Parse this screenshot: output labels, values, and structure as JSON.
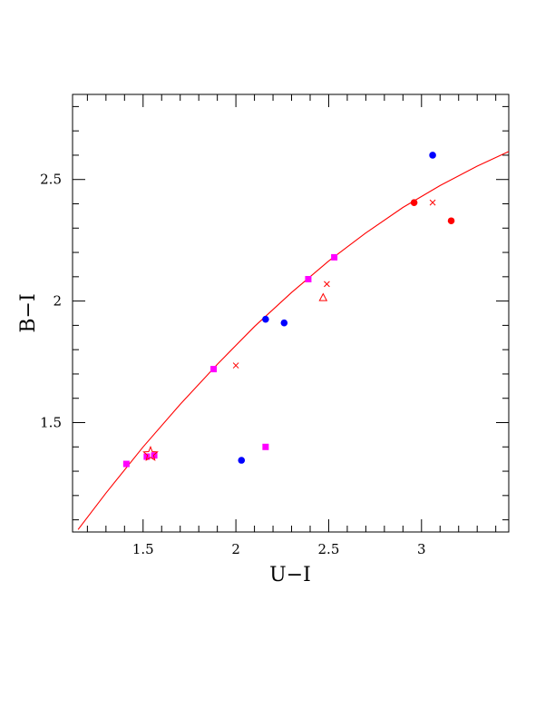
{
  "chart_data": {
    "type": "scatter",
    "title": "",
    "xlabel": "U−I",
    "ylabel": "B−I",
    "xlim": [
      1.12,
      3.47
    ],
    "ylim": [
      1.05,
      2.85
    ],
    "grid": false,
    "x_ticks": [
      {
        "value": 1.5,
        "label": "1.5"
      },
      {
        "value": 2,
        "label": "2"
      },
      {
        "value": 2.5,
        "label": "2.5"
      },
      {
        "value": 3,
        "label": "3"
      }
    ],
    "y_ticks": [
      {
        "value": 1.5,
        "label": "1.5"
      },
      {
        "value": 2,
        "label": "2"
      },
      {
        "value": 2.5,
        "label": "2.5"
      }
    ],
    "x_minor_step": 0.1,
    "y_minor_step": 0.1,
    "series": [
      {
        "color": "#ff00ff",
        "marker": "square",
        "points": [
          [
            1.41,
            1.33
          ],
          [
            1.52,
            1.36
          ],
          [
            1.56,
            1.365
          ],
          [
            1.88,
            1.72
          ],
          [
            2.16,
            1.4
          ],
          [
            2.39,
            2.09
          ],
          [
            2.53,
            2.18
          ]
        ]
      },
      {
        "color": "#0000ff",
        "marker": "circle",
        "points": [
          [
            2.03,
            1.345
          ],
          [
            2.16,
            1.925
          ],
          [
            2.26,
            1.91
          ],
          [
            3.06,
            2.6
          ]
        ]
      },
      {
        "color": "#ff0000",
        "marker": "circle",
        "points": [
          [
            2.96,
            2.405
          ],
          [
            3.16,
            2.33
          ]
        ]
      },
      {
        "color": "#ff0000",
        "marker": "triangle",
        "points": [
          [
            2.47,
            2.015
          ]
        ]
      },
      {
        "color": "#ff0000",
        "marker": "star",
        "points": [
          [
            1.54,
            1.37
          ]
        ]
      },
      {
        "color": "#ff0000",
        "marker": "cross",
        "points": [
          [
            2.0,
            1.735
          ],
          [
            2.49,
            2.07
          ],
          [
            3.06,
            2.405
          ]
        ]
      }
    ],
    "curve": {
      "color": "#ff0000",
      "type": "line",
      "points": [
        [
          1.15,
          1.06
        ],
        [
          1.3,
          1.21
        ],
        [
          1.5,
          1.4
        ],
        [
          1.7,
          1.575
        ],
        [
          1.9,
          1.74
        ],
        [
          2.1,
          1.895
        ],
        [
          2.3,
          2.035
        ],
        [
          2.5,
          2.165
        ],
        [
          2.7,
          2.28
        ],
        [
          2.9,
          2.385
        ],
        [
          3.1,
          2.475
        ],
        [
          3.3,
          2.555
        ],
        [
          3.47,
          2.615
        ]
      ]
    }
  }
}
